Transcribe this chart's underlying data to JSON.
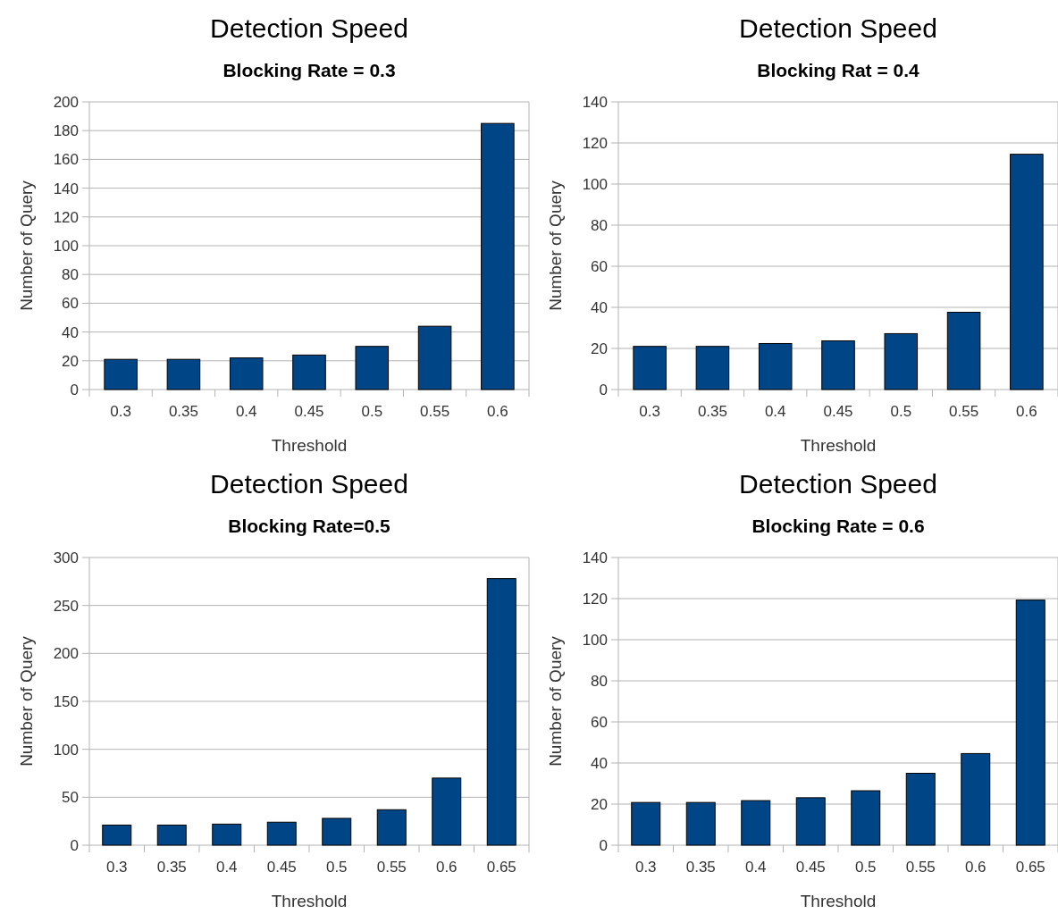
{
  "chart_data": [
    {
      "type": "bar",
      "title": "Detection Speed",
      "subtitle": "Blocking Rate = 0.3",
      "xlabel": "Threshold",
      "ylabel": "Number of Query",
      "categories": [
        "0.3",
        "0.35",
        "0.4",
        "0.45",
        "0.5",
        "0.55",
        "0.6"
      ],
      "values": [
        21,
        21,
        22,
        24,
        30,
        44,
        185
      ],
      "color": "#004586",
      "ylim": [
        0,
        200
      ],
      "yticks": [
        0,
        20,
        40,
        60,
        80,
        100,
        120,
        140,
        160,
        180,
        200
      ],
      "grid": "y"
    },
    {
      "type": "bar",
      "title": "Detection Speed",
      "subtitle": "Blocking Rat = 0.4",
      "xlabel": "Threshold",
      "ylabel": "Number of Query",
      "categories": [
        "0.3",
        "0.35",
        "0.4",
        "0.45",
        "0.5",
        "0.55",
        "0.6"
      ],
      "values": [
        21,
        21,
        22.4,
        23.7,
        27.2,
        37.6,
        114.5
      ],
      "color": "#004586",
      "ylim": [
        0,
        140
      ],
      "yticks": [
        0,
        20,
        40,
        60,
        80,
        100,
        120,
        140
      ],
      "grid": "y"
    },
    {
      "type": "bar",
      "title": "Detection Speed",
      "subtitle": "Blocking Rate=0.5",
      "xlabel": "Threshold",
      "ylabel": "Number of Query",
      "categories": [
        "0.3",
        "0.35",
        "0.4",
        "0.45",
        "0.5",
        "0.55",
        "0.6",
        "0.65"
      ],
      "values": [
        21,
        21,
        22,
        24,
        28,
        37,
        70,
        278
      ],
      "color": "#004586",
      "ylim": [
        0,
        300
      ],
      "yticks": [
        0,
        50,
        100,
        150,
        200,
        250,
        300
      ],
      "grid": "y"
    },
    {
      "type": "bar",
      "title": "Detection Speed",
      "subtitle": "Blocking Rate = 0.6",
      "xlabel": "Threshold",
      "ylabel": "Number of Query",
      "categories": [
        "0.3",
        "0.35",
        "0.4",
        "0.45",
        "0.5",
        "0.55",
        "0.6",
        "0.65"
      ],
      "values": [
        20.8,
        20.8,
        21.7,
        23.1,
        26.5,
        35,
        44.6,
        119.3
      ],
      "color": "#004586",
      "ylim": [
        0,
        140
      ],
      "yticks": [
        0,
        20,
        40,
        60,
        80,
        100,
        120,
        140
      ],
      "grid": "y"
    }
  ]
}
